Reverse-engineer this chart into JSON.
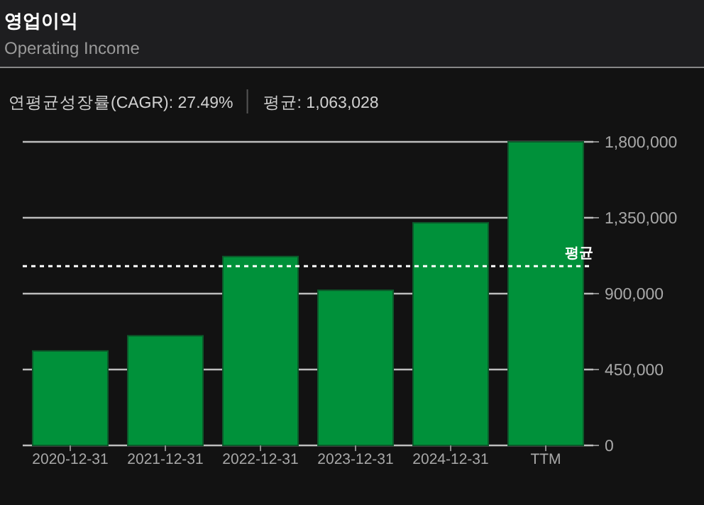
{
  "chart_data": {
    "type": "bar",
    "title": "영업이익",
    "subtitle": "Operating Income",
    "annotations": [
      "연평균성장률(CAGR): 27.49%",
      "평균: 1,063,028"
    ],
    "categories": [
      "2020-12-31",
      "2021-12-31",
      "2022-12-31",
      "2023-12-31",
      "2024-12-31",
      "TTM"
    ],
    "values": [
      560000,
      650000,
      1120000,
      920000,
      1320000,
      1800000
    ],
    "color": "#00913a",
    "ylim": [
      0,
      1800000
    ],
    "yticks": [
      {
        "value": 0,
        "label": "0"
      },
      {
        "value": 450000,
        "label": "450,000"
      },
      {
        "value": 900000,
        "label": "900,000"
      },
      {
        "value": 1350000,
        "label": "1,350,000"
      },
      {
        "value": 1800000,
        "label": "1,800,000"
      }
    ],
    "grid": "y",
    "ref_lines": [
      {
        "axis": "y",
        "value": 1063028,
        "label": "평균",
        "color": "#ffffff",
        "line_style": "dotted"
      }
    ]
  }
}
